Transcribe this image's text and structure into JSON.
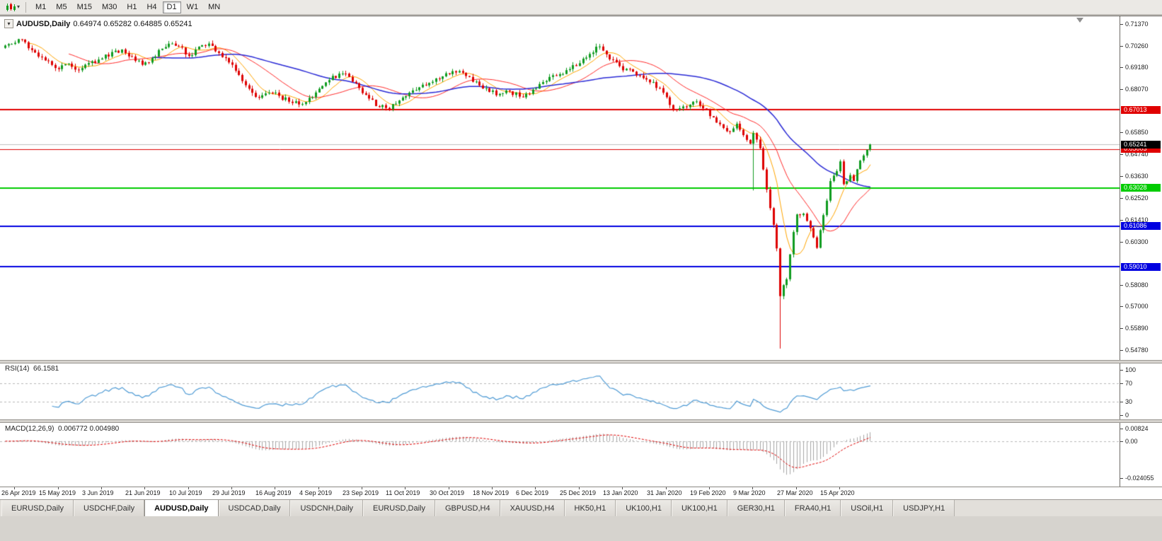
{
  "toolbar": {
    "timeframes": [
      {
        "label": "M1",
        "active": false
      },
      {
        "label": "M5",
        "active": false
      },
      {
        "label": "M15",
        "active": false
      },
      {
        "label": "M30",
        "active": false
      },
      {
        "label": "H1",
        "active": false
      },
      {
        "label": "H4",
        "active": false
      },
      {
        "label": "D1",
        "active": true
      },
      {
        "label": "W1",
        "active": false
      },
      {
        "label": "MN",
        "active": false
      }
    ]
  },
  "chart": {
    "title": "AUDUSD,Daily",
    "quote": "0.64974 0.65282 0.64885 0.65241"
  },
  "rsi_panel": {
    "label": "RSI(14)",
    "value": "66.1581",
    "scale": [
      {
        "label": "100",
        "value": 100
      },
      {
        "label": "70",
        "value": 70
      },
      {
        "label": "30",
        "value": 30
      },
      {
        "label": "0",
        "value": 0
      }
    ],
    "levels": [
      70,
      30
    ],
    "line_color": "#4F9BD5"
  },
  "macd_panel": {
    "label": "MACD(12,26,9)",
    "value": "0.006772 0.004980",
    "scale": [
      {
        "label": "0.00824",
        "value": 0.00824
      },
      {
        "label": "0.00",
        "value": 0
      },
      {
        "label": "-0.024055",
        "value": -0.024055
      }
    ],
    "histogram_color": "#A6A6A6",
    "signal_color": "#E00000"
  },
  "tabbar": {
    "tabs": [
      {
        "label": "EURUSD,Daily",
        "active": false
      },
      {
        "label": "USDCHF,Daily",
        "active": false
      },
      {
        "label": "AUDUSD,Daily",
        "active": true
      },
      {
        "label": "USDCAD,Daily",
        "active": false
      },
      {
        "label": "USDCNH,Daily",
        "active": false
      },
      {
        "label": "EURUSD,Daily",
        "active": false
      },
      {
        "label": "GBPUSD,H4",
        "active": false
      },
      {
        "label": "XAUUSD,H4",
        "active": false
      },
      {
        "label": "HK50,H1",
        "active": false
      },
      {
        "label": "UK100,H1",
        "active": false
      },
      {
        "label": "UK100,H1",
        "active": false
      },
      {
        "label": "GER30,H1",
        "active": false
      },
      {
        "label": "FRA40,H1",
        "active": false
      },
      {
        "label": "USOil,H1",
        "active": false
      },
      {
        "label": "USDJPY,H1",
        "active": false
      }
    ]
  },
  "chart_data": {
    "type": "candlestick",
    "symbol": "AUDUSD",
    "timeframe": "Daily",
    "ohlc_current": {
      "open": 0.64974,
      "high": 0.65282,
      "low": 0.64885,
      "close": 0.65241
    },
    "y_range": [
      0.5427,
      0.7177
    ],
    "y_ticks": [
      {
        "label": "0.71370",
        "value": 0.7137
      },
      {
        "label": "0.70260",
        "value": 0.7026
      },
      {
        "label": "0.69180",
        "value": 0.6918
      },
      {
        "label": "0.68070",
        "value": 0.6807
      },
      {
        "label": "0.65850",
        "value": 0.6585
      },
      {
        "label": "0.64740",
        "value": 0.6474
      },
      {
        "label": "0.63630",
        "value": 0.6363
      },
      {
        "label": "0.62520",
        "value": 0.6252
      },
      {
        "label": "0.61410",
        "value": 0.6141
      },
      {
        "label": "0.60300",
        "value": 0.603
      },
      {
        "label": "0.58080",
        "value": 0.5808
      },
      {
        "label": "0.57000",
        "value": 0.57
      },
      {
        "label": "0.55890",
        "value": 0.5589
      },
      {
        "label": "0.54780",
        "value": 0.5478
      }
    ],
    "hlines": [
      {
        "value": 0.67013,
        "label": "0.67013",
        "color": "#E00000",
        "width": 2
      },
      {
        "value": 0.65003,
        "label": "0.65003",
        "color": "#E00000",
        "width": 1
      },
      {
        "value": 0.63028,
        "label": "0.63028",
        "color": "#00CC00",
        "width": 2
      },
      {
        "value": 0.61086,
        "label": "0.61086",
        "color": "#0000E0",
        "width": 2
      },
      {
        "value": 0.5901,
        "label": "0.59010",
        "color": "#0000E0",
        "width": 2
      }
    ],
    "current_price": {
      "value": 0.65241,
      "label": "0.65241",
      "line_color": "#C0C0C0",
      "badge_bg": "#000000"
    },
    "x_tick_labels": [
      "26 Apr 2019",
      "15 May 2019",
      "3 Jun 2019",
      "21 Jun 2019",
      "10 Jul 2019",
      "29 Jul 2019",
      "16 Aug 2019",
      "4 Sep 2019",
      "23 Sep 2019",
      "11 Oct 2019",
      "30 Oct 2019",
      "18 Nov 2019",
      "6 Dec 2019",
      "25 Dec 2019",
      "13 Jan 2020",
      "31 Jan 2020",
      "19 Feb 2020",
      "9 Mar 2020",
      "27 Mar 2020",
      "15 Apr 2020"
    ],
    "first_label_bar": 3,
    "label_step": 13,
    "bars": 260,
    "seed": 42,
    "noise": 0.003,
    "close_anchors": [
      [
        0,
        0.7028
      ],
      [
        3,
        0.7042
      ],
      [
        5,
        0.7058
      ],
      [
        8,
        0.7005
      ],
      [
        12,
        0.6952
      ],
      [
        16,
        0.6908
      ],
      [
        19,
        0.6936
      ],
      [
        22,
        0.6902
      ],
      [
        26,
        0.6948
      ],
      [
        29,
        0.6962
      ],
      [
        32,
        0.6995
      ],
      [
        35,
        0.7008
      ],
      [
        38,
        0.6972
      ],
      [
        41,
        0.693
      ],
      [
        44,
        0.6965
      ],
      [
        47,
        0.7012
      ],
      [
        50,
        0.7038
      ],
      [
        53,
        0.7018
      ],
      [
        55,
        0.6975
      ],
      [
        58,
        0.7022
      ],
      [
        61,
        0.7038
      ],
      [
        64,
        0.699
      ],
      [
        67,
        0.6942
      ],
      [
        70,
        0.6878
      ],
      [
        73,
        0.6808
      ],
      [
        76,
        0.6762
      ],
      [
        79,
        0.6788
      ],
      [
        82,
        0.6772
      ],
      [
        85,
        0.6742
      ],
      [
        88,
        0.6728
      ],
      [
        91,
        0.6762
      ],
      [
        94,
        0.6808
      ],
      [
        97,
        0.6852
      ],
      [
        100,
        0.6885
      ],
      [
        103,
        0.6868
      ],
      [
        106,
        0.6812
      ],
      [
        109,
        0.6758
      ],
      [
        112,
        0.6715
      ],
      [
        115,
        0.6705
      ],
      [
        118,
        0.6748
      ],
      [
        121,
        0.6788
      ],
      [
        124,
        0.6815
      ],
      [
        127,
        0.6838
      ],
      [
        130,
        0.6858
      ],
      [
        133,
        0.6882
      ],
      [
        136,
        0.6898
      ],
      [
        139,
        0.6868
      ],
      [
        142,
        0.6825
      ],
      [
        145,
        0.6792
      ],
      [
        148,
        0.6782
      ],
      [
        151,
        0.6795
      ],
      [
        154,
        0.6768
      ],
      [
        157,
        0.6782
      ],
      [
        160,
        0.6832
      ],
      [
        163,
        0.6868
      ],
      [
        166,
        0.6882
      ],
      [
        169,
        0.6908
      ],
      [
        172,
        0.6938
      ],
      [
        175,
        0.6985
      ],
      [
        177,
        0.7022
      ],
      [
        179,
        0.7002
      ],
      [
        182,
        0.6955
      ],
      [
        185,
        0.6902
      ],
      [
        188,
        0.6895
      ],
      [
        191,
        0.6862
      ],
      [
        194,
        0.6842
      ],
      [
        197,
        0.6788
      ],
      [
        200,
        0.6702
      ],
      [
        203,
        0.6718
      ],
      [
        206,
        0.6742
      ],
      [
        209,
        0.6708
      ],
      [
        212,
        0.6662
      ],
      [
        215,
        0.6608
      ],
      [
        217,
        0.6588
      ],
      [
        219,
        0.663
      ],
      [
        221,
        0.6572
      ],
      [
        223,
        0.6528
      ],
      [
        224,
        0.6582
      ],
      [
        226,
        0.6505
      ],
      [
        228,
        0.6295
      ],
      [
        230,
        0.6115
      ],
      [
        231,
        0.5995
      ],
      [
        232,
        0.5752
      ],
      [
        233,
        0.5808
      ],
      [
        234,
        0.5838
      ],
      [
        235,
        0.5965
      ],
      [
        237,
        0.6168
      ],
      [
        239,
        0.6172
      ],
      [
        241,
        0.6098
      ],
      [
        243,
        0.5998
      ],
      [
        244,
        0.6088
      ],
      [
        246,
        0.6238
      ],
      [
        247,
        0.6338
      ],
      [
        249,
        0.6388
      ],
      [
        250,
        0.6438
      ],
      [
        251,
        0.6322
      ],
      [
        253,
        0.6368
      ],
      [
        254,
        0.6338
      ],
      [
        255,
        0.6398
      ],
      [
        256,
        0.6442
      ],
      [
        257,
        0.6468
      ],
      [
        258,
        0.6497
      ],
      [
        259,
        0.65241
      ]
    ],
    "wick_overrides": [
      [
        224,
        0.629
      ],
      [
        232,
        0.5485
      ]
    ],
    "up_color": "#0F9B1F",
    "down_color": "#DE0000",
    "moving_averages": [
      {
        "period": 8,
        "type": "sma",
        "color": "#FFA500",
        "width": 1
      },
      {
        "period": 20,
        "type": "sma",
        "color": "#FF2B2B",
        "width": 1
      },
      {
        "period": 45,
        "type": "sma",
        "color": "#2A2AD6",
        "width": 1.5
      }
    ],
    "rsi": {
      "period": 14,
      "current": 66.1581
    },
    "macd": {
      "fast": 12,
      "slow": 26,
      "signal": 9,
      "current_main": 0.006772,
      "current_signal": 0.00498,
      "scale_min": -0.024055,
      "scale_max": 0.00824
    }
  }
}
